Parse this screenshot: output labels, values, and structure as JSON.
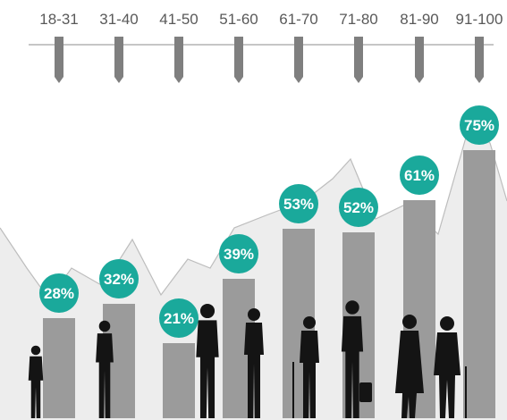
{
  "chart_data": {
    "type": "bar",
    "categories": [
      "18-31",
      "31-40",
      "41-50",
      "51-60",
      "61-70",
      "71-80",
      "81-90",
      "91-100"
    ],
    "values": [
      28,
      32,
      21,
      39,
      53,
      52,
      61,
      75
    ],
    "value_labels": [
      "28%",
      "32%",
      "21%",
      "39%",
      "53%",
      "52%",
      "61%",
      "75%"
    ],
    "ylim": [
      0,
      80
    ],
    "title": "",
    "xlabel": "",
    "ylabel": "",
    "legend": "none",
    "grid": false
  },
  "colors": {
    "bar": "#9b9b9b",
    "badge": "#1aa99b",
    "badge_text": "#ffffff",
    "marker": "#7f7f7f",
    "axis_line": "#8c8c8c",
    "category_text": "#595959",
    "background_area": "#ededed",
    "background_line": "#bdbdbd",
    "silhouette": "#141414"
  },
  "icons": [
    "child-silhouette-icon",
    "boy-silhouette-icon",
    "man-silhouette-icon",
    "woman-silhouette-icon",
    "elderly-woman-with-cane-icon",
    "elderly-man-with-bag-icon",
    "elderly-couple-icon"
  ]
}
